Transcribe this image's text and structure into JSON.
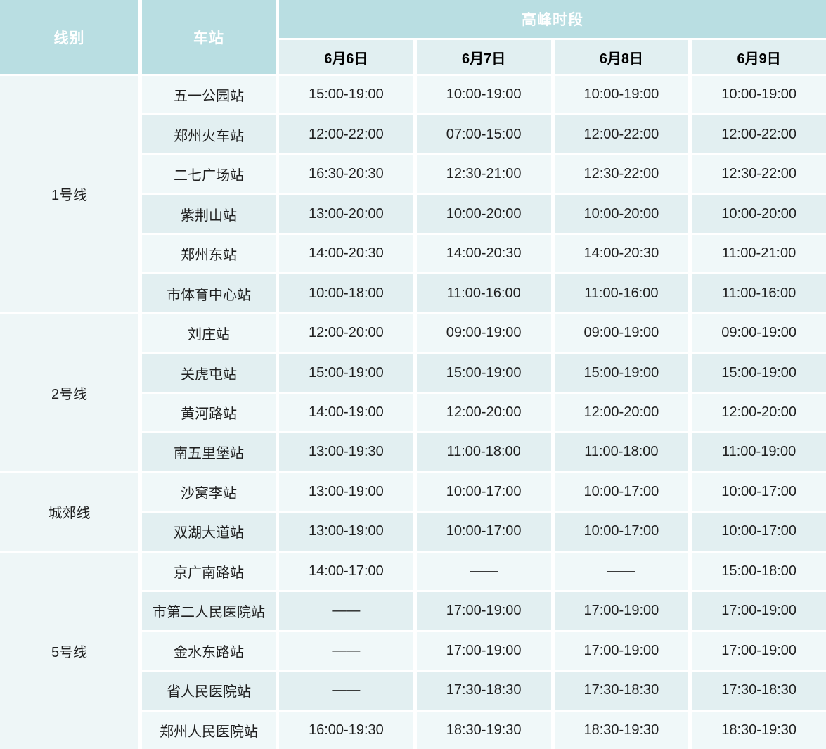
{
  "table": {
    "header": {
      "line_col": "线别",
      "station_col": "车站",
      "peak_title": "高峰时段",
      "dates": [
        "6月6日",
        "6月7日",
        "6月8日",
        "6月9日"
      ]
    },
    "empty_marker": "——",
    "colors": {
      "header_teal": "#b9dee2",
      "date_row_bg": "#e1eff1",
      "row_light": "#f0f8f9",
      "row_dark": "#e2eff1",
      "line_col_bg": "#eef6f7",
      "header_text": "#ffffff",
      "body_text": "#1f1f1f"
    },
    "groups": [
      {
        "line": "1号线",
        "stations": [
          {
            "name": "五一公园站",
            "times": [
              "15:00-19:00",
              "10:00-19:00",
              "10:00-19:00",
              "10:00-19:00"
            ]
          },
          {
            "name": "郑州火车站",
            "times": [
              "12:00-22:00",
              "07:00-15:00",
              "12:00-22:00",
              "12:00-22:00"
            ]
          },
          {
            "name": "二七广场站",
            "times": [
              "16:30-20:30",
              "12:30-21:00",
              "12:30-22:00",
              "12:30-22:00"
            ]
          },
          {
            "name": "紫荆山站",
            "times": [
              "13:00-20:00",
              "10:00-20:00",
              "10:00-20:00",
              "10:00-20:00"
            ]
          },
          {
            "name": "郑州东站",
            "times": [
              "14:00-20:30",
              "14:00-20:30",
              "14:00-20:30",
              "11:00-21:00"
            ]
          },
          {
            "name": "市体育中心站",
            "times": [
              "10:00-18:00",
              "11:00-16:00",
              "11:00-16:00",
              "11:00-16:00"
            ]
          }
        ]
      },
      {
        "line": "2号线",
        "stations": [
          {
            "name": "刘庄站",
            "times": [
              "12:00-20:00",
              "09:00-19:00",
              "09:00-19:00",
              "09:00-19:00"
            ]
          },
          {
            "name": "关虎屯站",
            "times": [
              "15:00-19:00",
              "15:00-19:00",
              "15:00-19:00",
              "15:00-19:00"
            ]
          },
          {
            "name": "黄河路站",
            "times": [
              "14:00-19:00",
              "12:00-20:00",
              "12:00-20:00",
              "12:00-20:00"
            ]
          },
          {
            "name": "南五里堡站",
            "times": [
              "13:00-19:30",
              "11:00-18:00",
              "11:00-18:00",
              "11:00-19:00"
            ]
          }
        ]
      },
      {
        "line": "城郊线",
        "stations": [
          {
            "name": "沙窝李站",
            "times": [
              "13:00-19:00",
              "10:00-17:00",
              "10:00-17:00",
              "10:00-17:00"
            ]
          },
          {
            "name": "双湖大道站",
            "times": [
              "13:00-19:00",
              "10:00-17:00",
              "10:00-17:00",
              "10:00-17:00"
            ]
          }
        ]
      },
      {
        "line": "5号线",
        "stations": [
          {
            "name": "京广南路站",
            "times": [
              "14:00-17:00",
              "——",
              "——",
              "15:00-18:00"
            ]
          },
          {
            "name": "市第二人民医院站",
            "times": [
              "——",
              "17:00-19:00",
              "17:00-19:00",
              "17:00-19:00"
            ]
          },
          {
            "name": "金水东路站",
            "times": [
              "——",
              "17:00-19:00",
              "17:00-19:00",
              "17:00-19:00"
            ]
          },
          {
            "name": "省人民医院站",
            "times": [
              "——",
              "17:30-18:30",
              "17:30-18:30",
              "17:30-18:30"
            ]
          },
          {
            "name": "郑州人民医院站",
            "times": [
              "16:00-19:30",
              "18:30-19:30",
              "18:30-19:30",
              "18:30-19:30"
            ]
          }
        ]
      }
    ]
  }
}
